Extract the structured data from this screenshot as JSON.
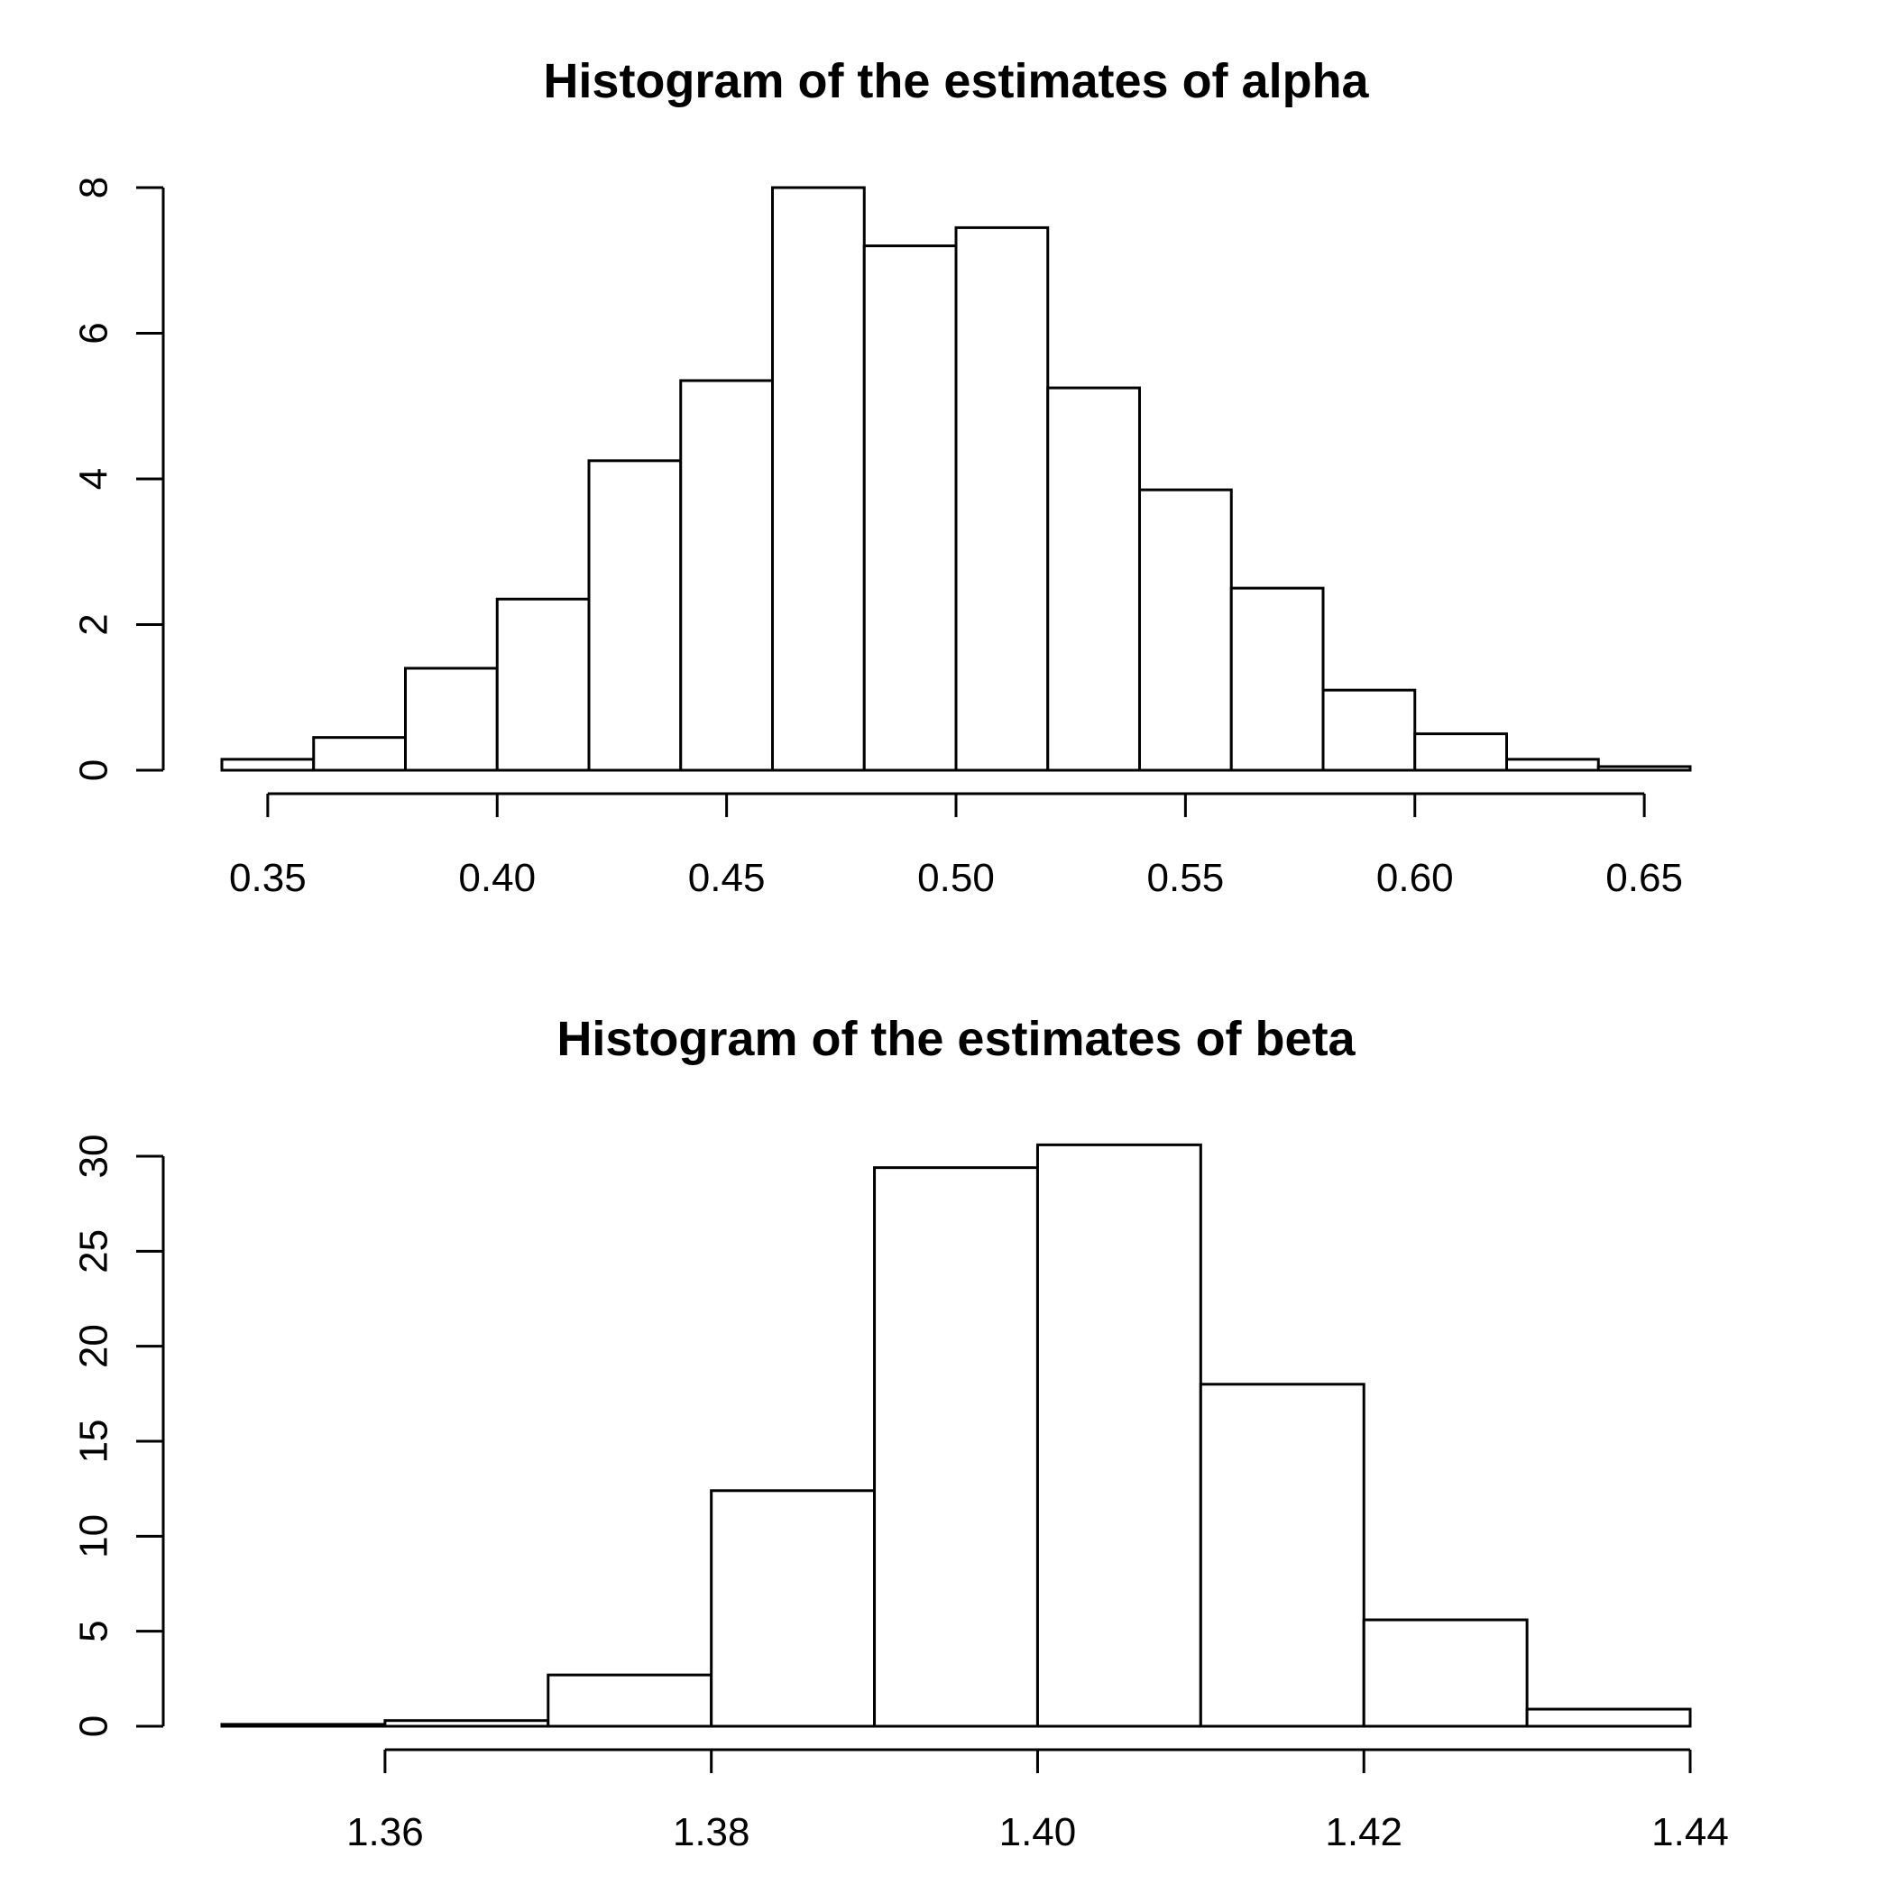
{
  "chart_data": [
    {
      "type": "bar",
      "title": "Histogram of the estimates of alpha",
      "xlabel": "",
      "ylabel": "",
      "bin_edges": [
        0.34,
        0.36,
        0.38,
        0.4,
        0.42,
        0.44,
        0.46,
        0.48,
        0.5,
        0.52,
        0.54,
        0.56,
        0.58,
        0.6,
        0.62,
        0.64,
        0.66
      ],
      "values": [
        0.15,
        0.45,
        1.4,
        2.35,
        4.25,
        5.35,
        8.0,
        7.2,
        7.45,
        5.25,
        3.85,
        2.5,
        1.1,
        0.5,
        0.15,
        0.05
      ],
      "xlim": [
        0.34,
        0.66
      ],
      "ylim": [
        0,
        8
      ],
      "x_ticks": [
        "0.35",
        "0.40",
        "0.45",
        "0.50",
        "0.55",
        "0.60",
        "0.65"
      ],
      "y_ticks": [
        "0",
        "2",
        "4",
        "6",
        "8"
      ],
      "grid": false
    },
    {
      "type": "bar",
      "title": "Histogram of the estimates of beta",
      "xlabel": "",
      "ylabel": "",
      "bin_edges": [
        1.35,
        1.36,
        1.37,
        1.38,
        1.39,
        1.4,
        1.41,
        1.42,
        1.43,
        1.44
      ],
      "values": [
        0.1,
        0.3,
        2.7,
        12.4,
        29.4,
        30.6,
        18.0,
        5.6,
        0.9
      ],
      "xlim": [
        1.35,
        1.44
      ],
      "ylim": [
        0,
        30
      ],
      "x_ticks": [
        "1.36",
        "1.38",
        "1.40",
        "1.42",
        "1.44"
      ],
      "y_ticks": [
        "0",
        "5",
        "10",
        "15",
        "20",
        "25",
        "30"
      ],
      "grid": false
    }
  ]
}
